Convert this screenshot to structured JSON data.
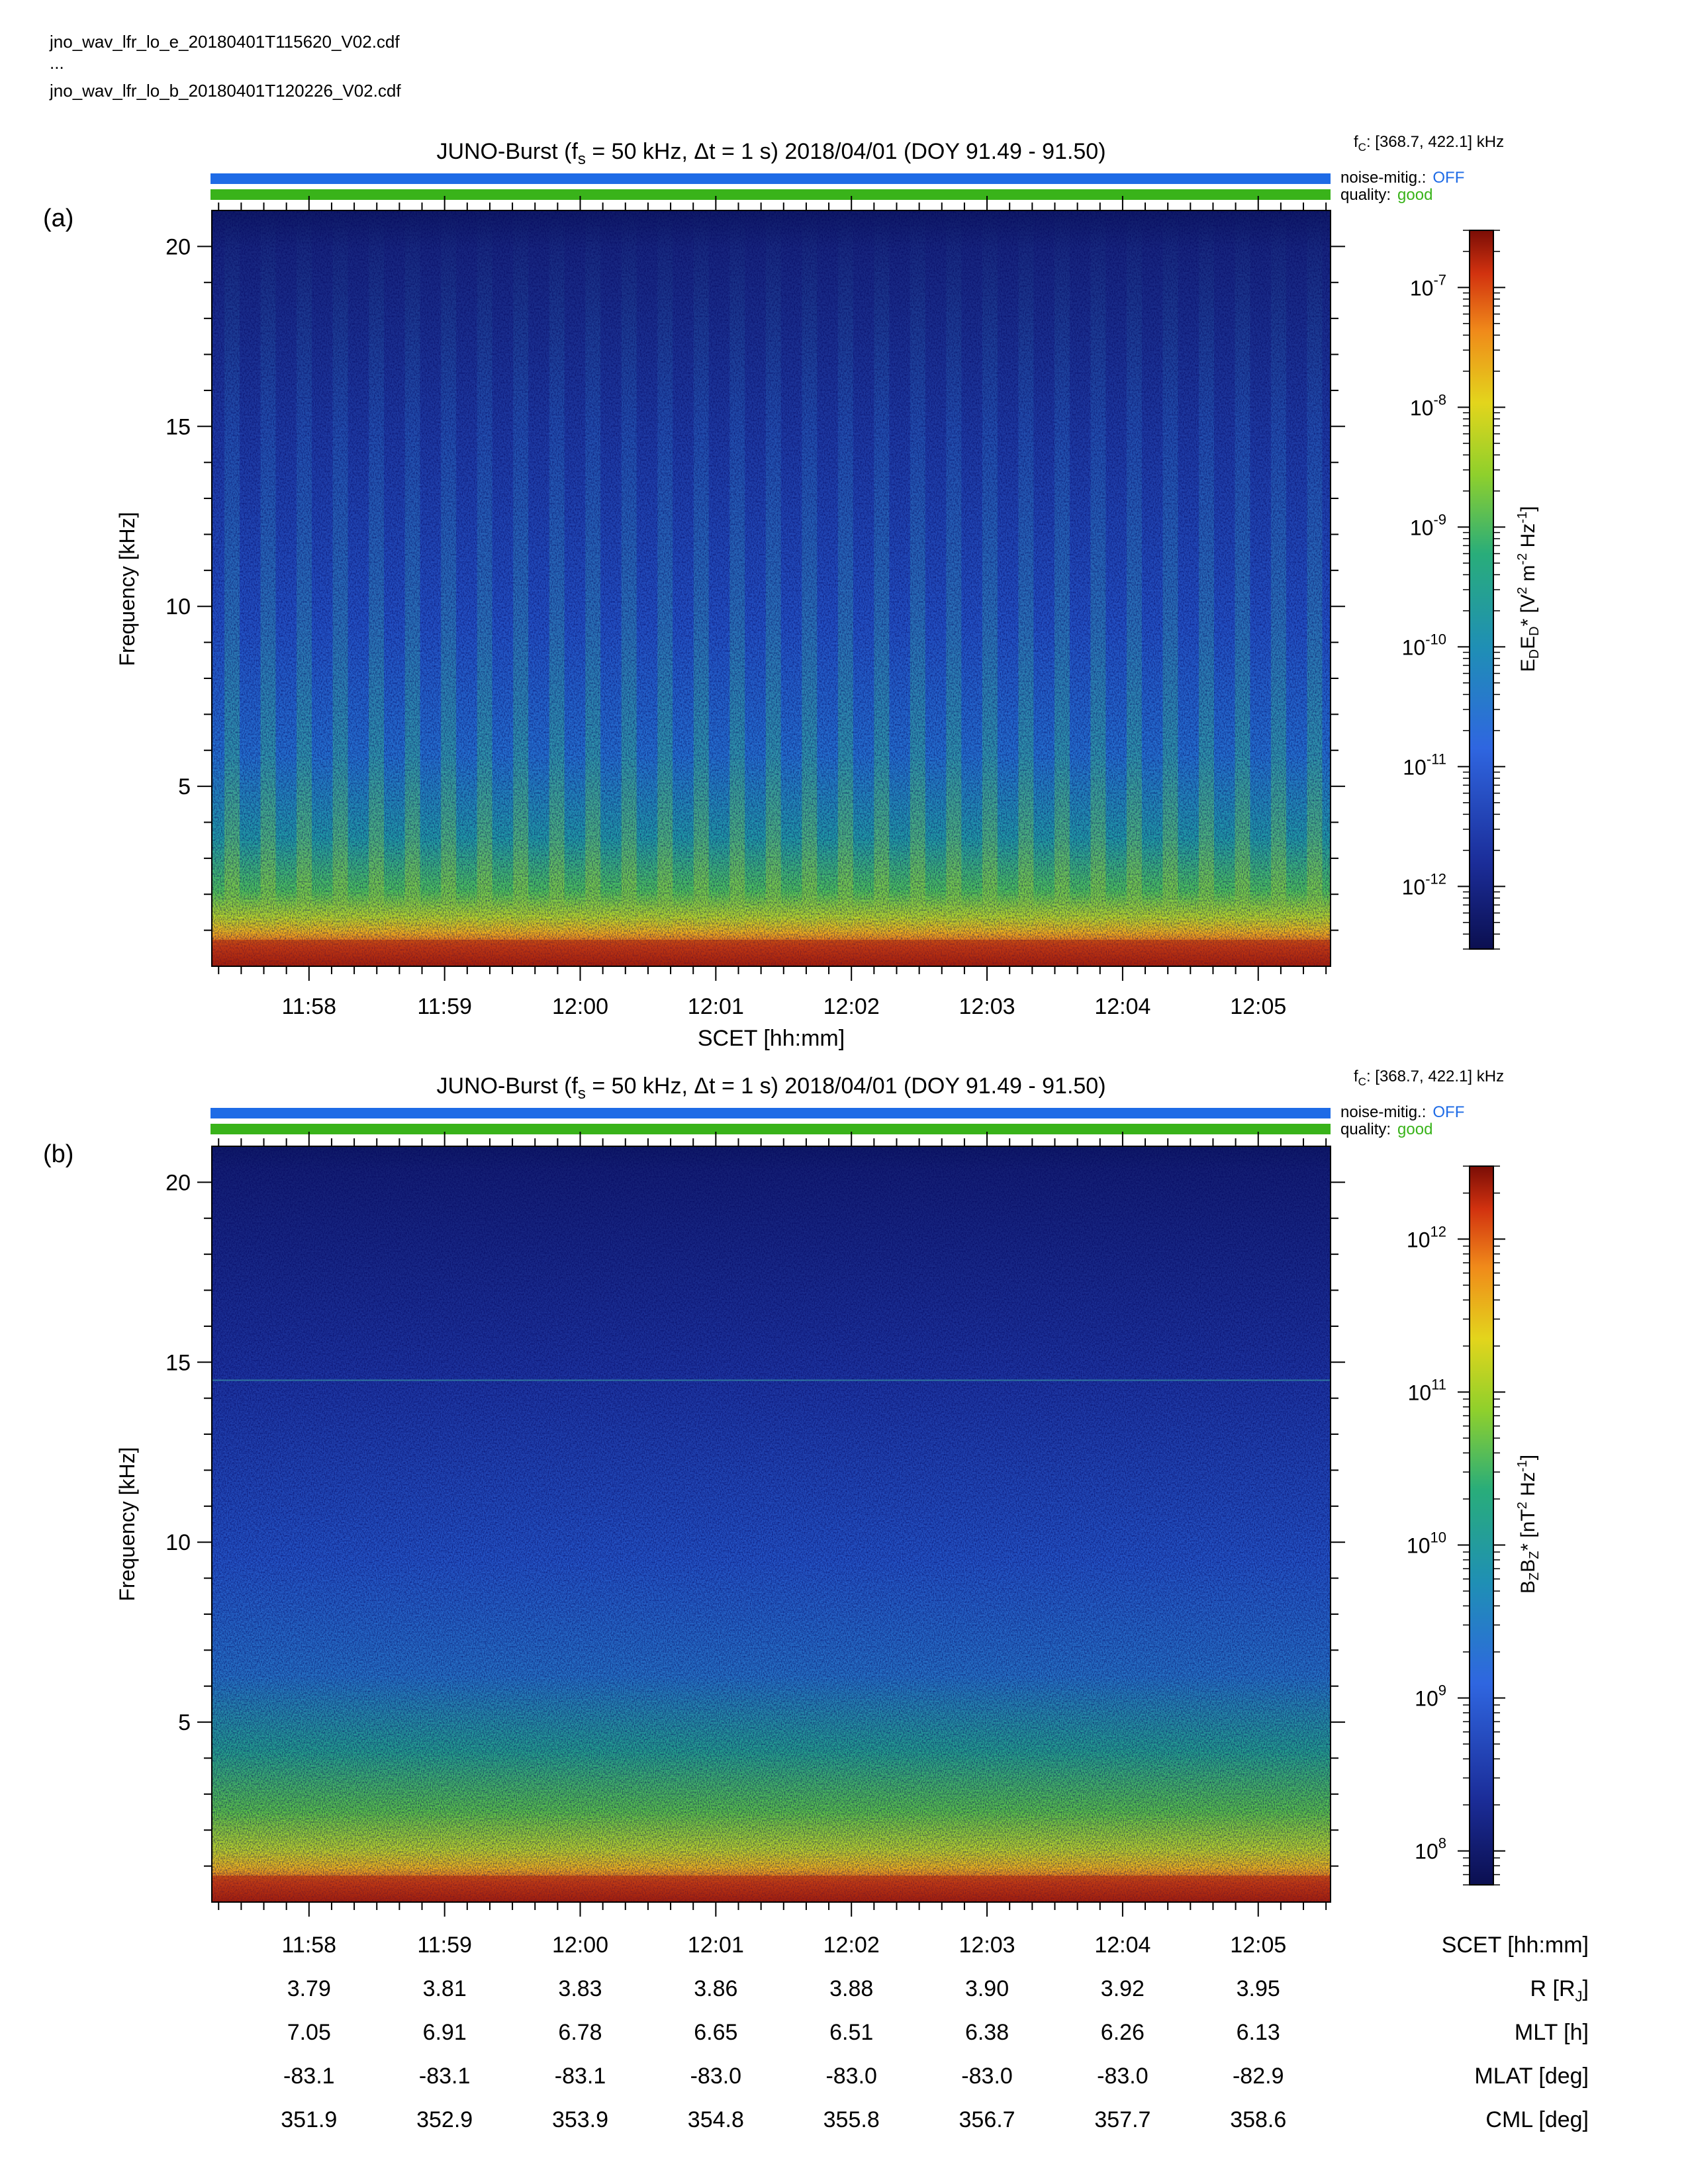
{
  "header": {
    "files": [
      "jno_wav_lfr_lo_e_20180401T115620_V02.cdf",
      "...",
      "jno_wav_lfr_lo_b_20180401T120226_V02.cdf"
    ]
  },
  "colors": {
    "noise_bar": "#1e6be6",
    "quality_bar": "#39b31a",
    "text": "#000000"
  },
  "chart_data": [
    {
      "type": "heatmap",
      "panel_label": "(a)",
      "title": {
        "prefix": "JUNO-Burst (f",
        "sub": "s",
        "rest": " = 50 kHz, Δt = 1 s)  2018/04/01 (DOY 91.49 - 91.50)"
      },
      "fc": {
        "label_main": "f",
        "label_sub": "C",
        "value": ": [368.7, 422.1] kHz"
      },
      "noise_mitig": {
        "label": "noise-mitig.:",
        "value": "OFF",
        "color": "#1e6be6"
      },
      "quality": {
        "label": "quality:",
        "value": "good",
        "color": "#39b31a"
      },
      "ylabel": "Frequency [kHz]",
      "ylim": [
        0,
        21
      ],
      "yticks": [
        5,
        10,
        15,
        20
      ],
      "xlabel": "SCET [hh:mm]",
      "x_range": [
        "11:57:17",
        "12:05:32"
      ],
      "xticks": [
        "11:58",
        "11:59",
        "12:00",
        "12:01",
        "12:02",
        "12:03",
        "12:04",
        "12:05"
      ],
      "colorbar": {
        "label": "E_D E_D* [V² m⁻² Hz⁻¹]",
        "scale": "log",
        "range": [
          3e-13,
          3e-07
        ],
        "ticks": [
          {
            "base": "10",
            "exp": "-7",
            "value": 1e-07
          },
          {
            "base": "10",
            "exp": "-8",
            "value": 1e-08
          },
          {
            "base": "10",
            "exp": "-9",
            "value": 1e-09
          },
          {
            "base": "10",
            "exp": "-10",
            "value": 1e-10
          },
          {
            "base": "10",
            "exp": "-11",
            "value": 1e-11
          },
          {
            "base": "10",
            "exp": "-12",
            "value": 1e-12
          }
        ]
      },
      "features": {
        "low_freq_band_kHz": [
          0,
          1
        ],
        "periodic_striations_count": 31
      }
    },
    {
      "type": "heatmap",
      "panel_label": "(b)",
      "title": {
        "prefix": "JUNO-Burst (f",
        "sub": "s",
        "rest": " = 50 kHz, Δt = 1 s)  2018/04/01 (DOY 91.49 - 91.50)"
      },
      "fc": {
        "label_main": "f",
        "label_sub": "C",
        "value": ": [368.7, 422.1] kHz"
      },
      "noise_mitig": {
        "label": "noise-mitig.:",
        "value": "OFF",
        "color": "#1e6be6"
      },
      "quality": {
        "label": "quality:",
        "value": "good",
        "color": "#39b31a"
      },
      "ylabel": "Frequency [kHz]",
      "ylim": [
        0,
        21
      ],
      "yticks": [
        5,
        10,
        15,
        20
      ],
      "x_range": [
        "11:57:17",
        "12:05:32"
      ],
      "xticks": [
        "11:58",
        "11:59",
        "12:00",
        "12:01",
        "12:02",
        "12:03",
        "12:04",
        "12:05"
      ],
      "colorbar": {
        "label": "B_Z B_Z* [nT² Hz⁻¹]",
        "scale": "log",
        "range": [
          60000000.0,
          3000000000000.0
        ],
        "ticks": [
          {
            "base": "10",
            "exp": "12",
            "value": 1000000000000.0
          },
          {
            "base": "10",
            "exp": "11",
            "value": 100000000000.0
          },
          {
            "base": "10",
            "exp": "10",
            "value": 10000000000.0
          },
          {
            "base": "10",
            "exp": "9",
            "value": 1000000000.0
          },
          {
            "base": "10",
            "exp": "8",
            "value": 100000000.0
          }
        ]
      },
      "features": {
        "low_freq_band_kHz": [
          0,
          1
        ],
        "line_kHz": 14.5
      }
    }
  ],
  "ephemeris": {
    "rows": [
      {
        "label": "SCET [hh:mm]",
        "values": [
          "11:58",
          "11:59",
          "12:00",
          "12:01",
          "12:02",
          "12:03",
          "12:04",
          "12:05"
        ]
      },
      {
        "label": "R [RJ]",
        "values": [
          "3.79",
          "3.81",
          "3.83",
          "3.86",
          "3.88",
          "3.90",
          "3.92",
          "3.95"
        ]
      },
      {
        "label": "MLT [h]",
        "values": [
          "7.05",
          "6.91",
          "6.78",
          "6.65",
          "6.51",
          "6.38",
          "6.26",
          "6.13"
        ]
      },
      {
        "label": "MLAT [deg]",
        "values": [
          "-83.1",
          "-83.1",
          "-83.1",
          "-83.0",
          "-83.0",
          "-83.0",
          "-83.0",
          "-82.9"
        ]
      },
      {
        "label": "CML [deg]",
        "values": [
          "351.9",
          "352.9",
          "353.9",
          "354.8",
          "355.8",
          "356.7",
          "357.7",
          "358.6"
        ]
      }
    ]
  }
}
